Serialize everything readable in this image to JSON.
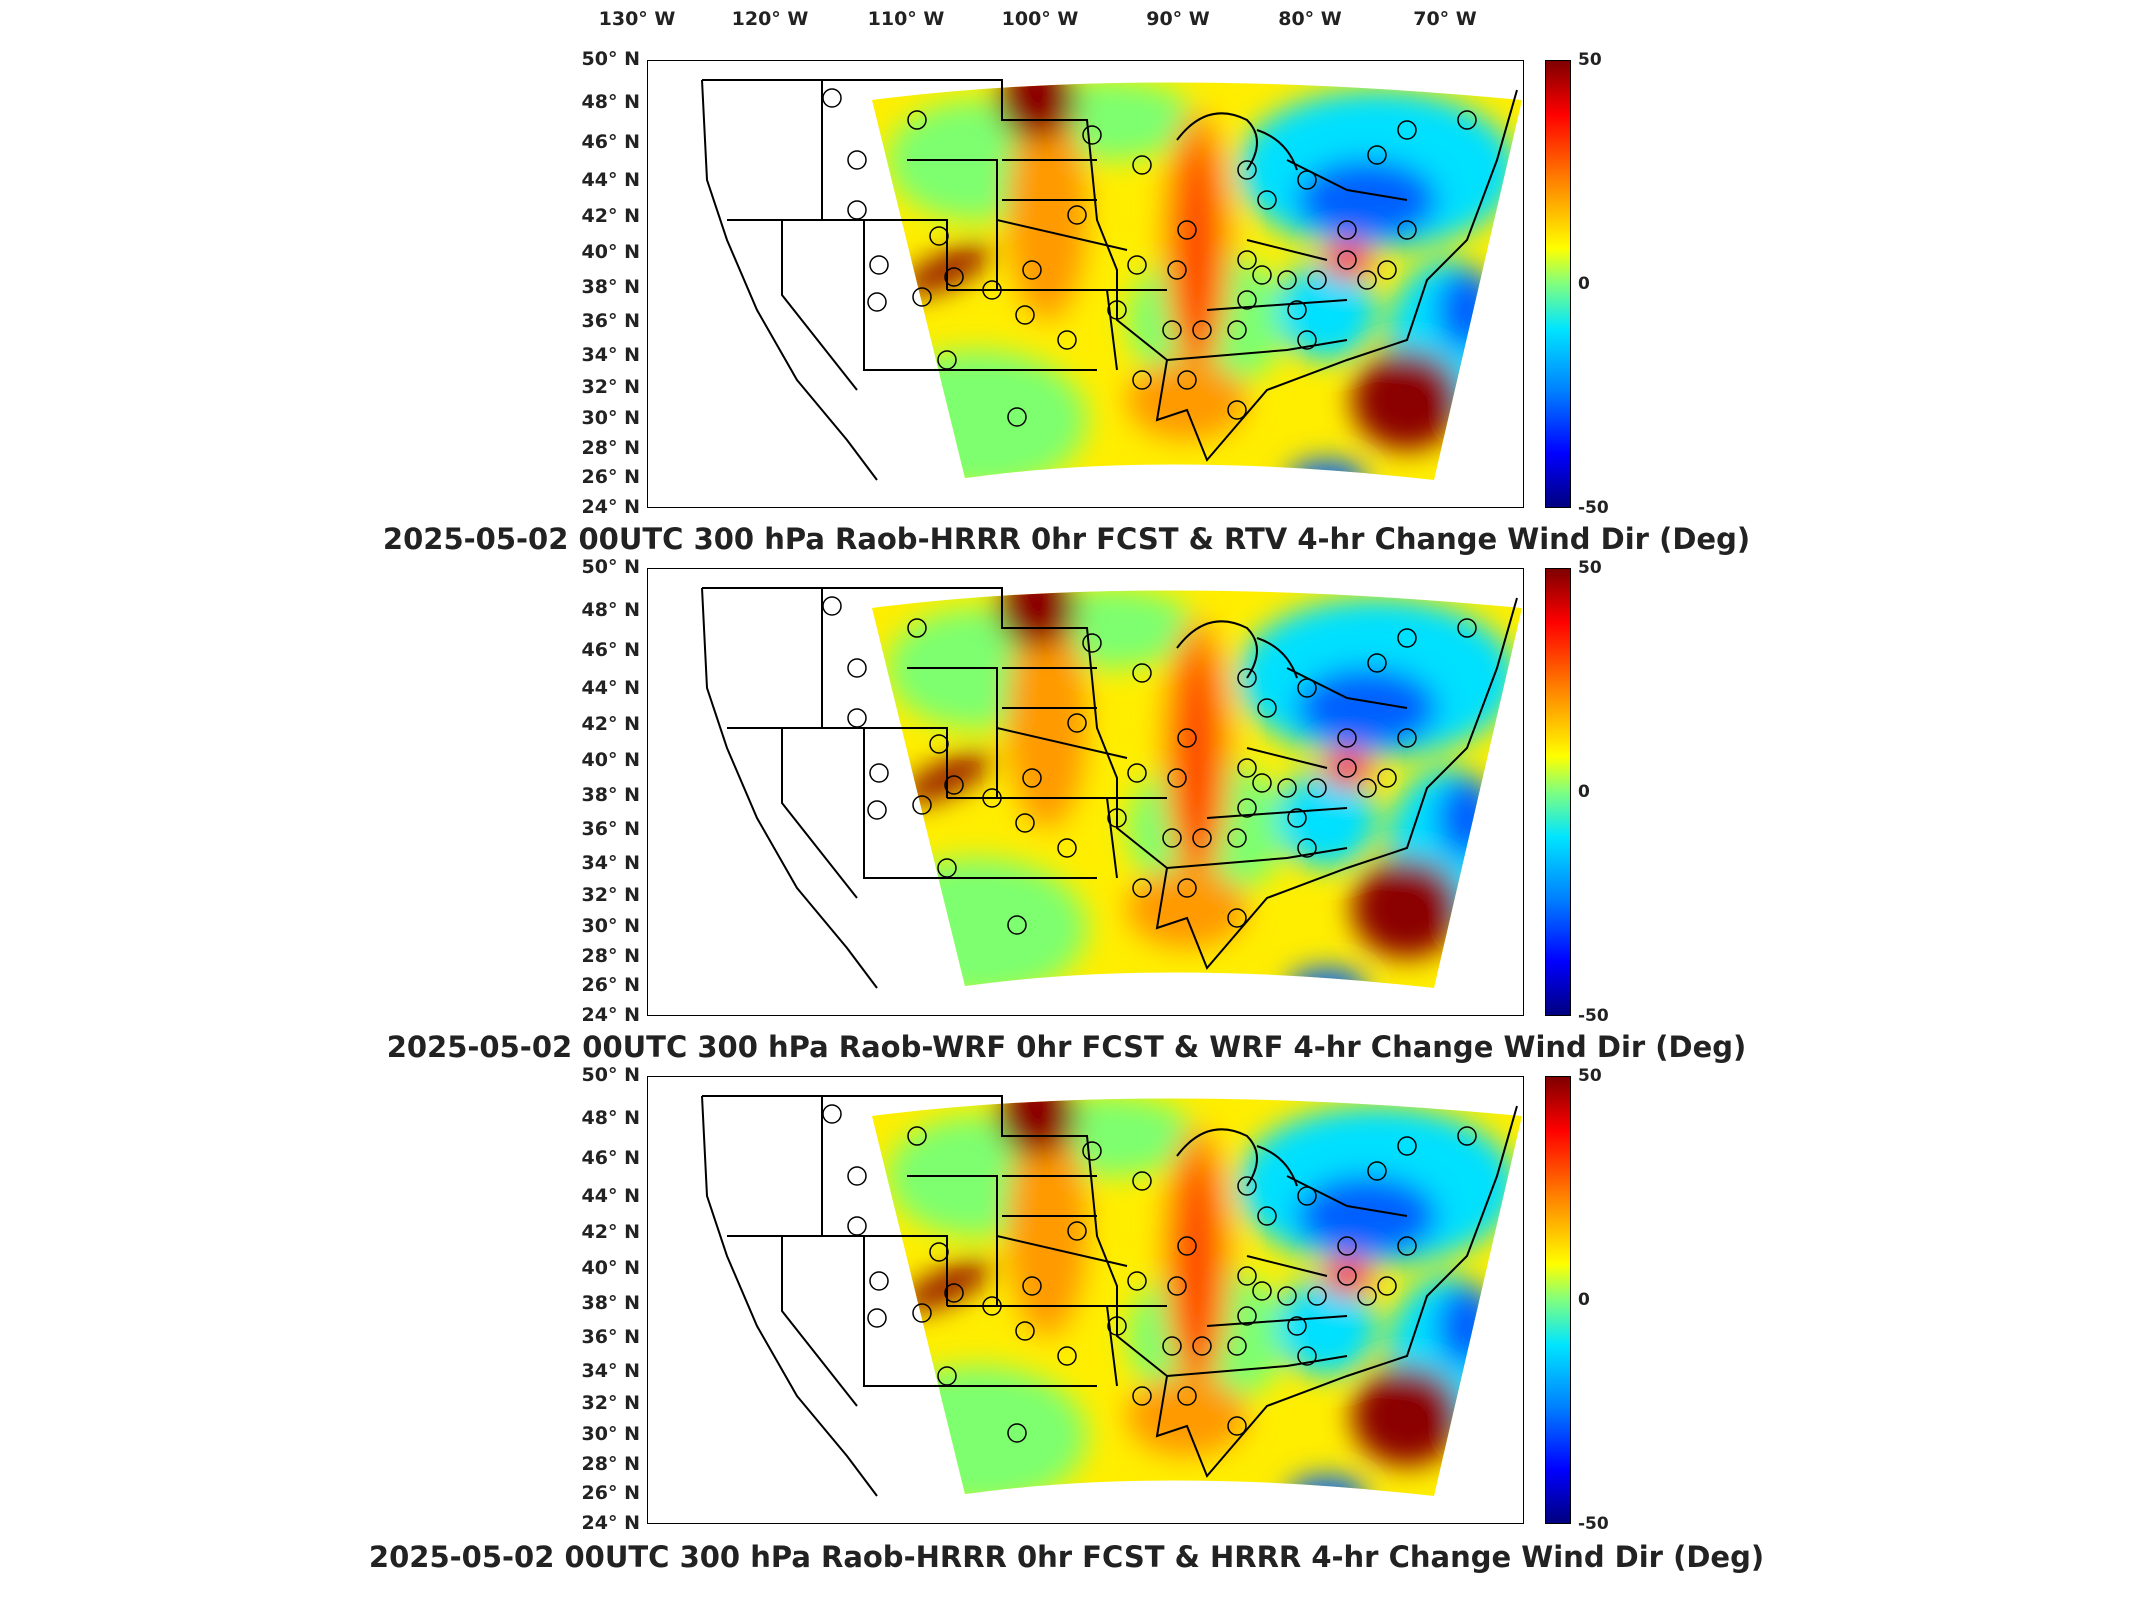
{
  "lon_labels": [
    "130° W",
    "120° W",
    "110° W",
    "100° W",
    "90° W",
    "80° W",
    "70° W"
  ],
  "lat_labels": [
    "50° N",
    "48° N",
    "46° N",
    "44° N",
    "42° N",
    "40° N",
    "38° N",
    "36° N",
    "34° N",
    "32° N",
    "30° N",
    "28° N",
    "26° N",
    "24° N"
  ],
  "colorbar": {
    "max": "50",
    "mid": "0",
    "min": "-50"
  },
  "panels": [
    {
      "title": "2025-05-02 00UTC 300 hPa Raob-HRRR 0hr FCST & RTV 4-hr Change Wind Dir (Deg)"
    },
    {
      "title": "2025-05-02 00UTC 300 hPa Raob-WRF 0hr FCST & WRF 4-hr Change Wind Dir (Deg)"
    },
    {
      "title": "2025-05-02 00UTC 300 hPa Raob-HRRR 0hr FCST & HRRR 4-hr Change Wind Dir (Deg)"
    }
  ],
  "colors": {
    "dark_red": "#8b0000",
    "red": "#ff2a00",
    "orange": "#ff9a00",
    "yellow": "#ffee00",
    "green": "#7dff70",
    "cyan": "#00e0ff",
    "blue": "#0060ff",
    "dark_blue": "#00007f"
  }
}
